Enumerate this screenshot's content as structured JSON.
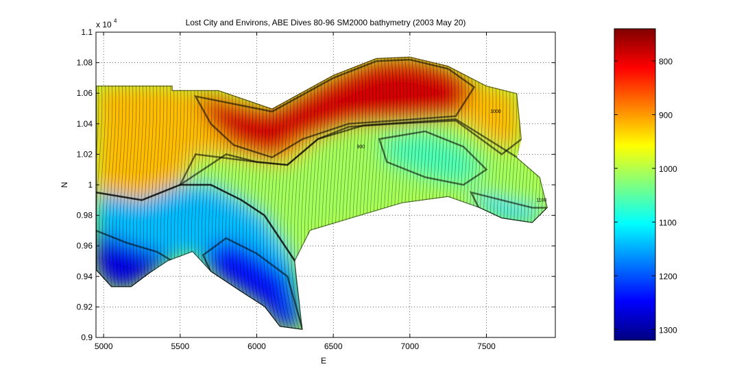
{
  "chart_data": {
    "type": "heatmap",
    "title": "Lost City and Environs, ABE Dives 80-96 SM2000 bathymetry (2003 May 20)",
    "xlabel": "E",
    "ylabel": "N",
    "xlim": [
      4950,
      7950
    ],
    "ylim": [
      9000,
      11000
    ],
    "x_ticks": [
      5000,
      5500,
      6000,
      6500,
      7000,
      7500
    ],
    "x_tick_labels": [
      "5000",
      "5500",
      "6000",
      "6500",
      "7000",
      "7500"
    ],
    "y_ticks": [
      9000,
      9200,
      9400,
      9600,
      9800,
      10000,
      10200,
      10400,
      10600,
      10800,
      11000
    ],
    "y_tick_labels": [
      "0.9",
      "0.92",
      "0.94",
      "0.96",
      "0.98",
      "1",
      "1.02",
      "1.04",
      "1.06",
      "1.08",
      "1.1"
    ],
    "y_exponent_label": "x 10",
    "y_exponent_power": "4",
    "grid": true,
    "colorbar": {
      "colormap": "jet",
      "range": [
        740,
        1320
      ],
      "ticks": [
        800,
        900,
        1000,
        1100,
        1200,
        1300
      ],
      "tick_labels": [
        "800",
        "900",
        "1000",
        "1100",
        "1200",
        "1300"
      ],
      "reversed": true
    },
    "contour_labels": [
      "900",
      "1000",
      "1100"
    ],
    "depth_field": {
      "footprint_polygon": [
        [
          4950,
          10650
        ],
        [
          5450,
          10650
        ],
        [
          5450,
          10620
        ],
        [
          5750,
          10620
        ],
        [
          6100,
          10500
        ],
        [
          6500,
          10720
        ],
        [
          6780,
          10830
        ],
        [
          7000,
          10840
        ],
        [
          7250,
          10780
        ],
        [
          7500,
          10650
        ],
        [
          7700,
          10600
        ],
        [
          7730,
          10300
        ],
        [
          7700,
          10180
        ],
        [
          7850,
          10050
        ],
        [
          7900,
          9850
        ],
        [
          7800,
          9750
        ],
        [
          7600,
          9780
        ],
        [
          7450,
          9850
        ],
        [
          7250,
          9920
        ],
        [
          6950,
          9880
        ],
        [
          6650,
          9790
        ],
        [
          6350,
          9700
        ],
        [
          6250,
          9500
        ],
        [
          6300,
          9050
        ],
        [
          6150,
          9070
        ],
        [
          6050,
          9200
        ],
        [
          5880,
          9310
        ],
        [
          5700,
          9430
        ],
        [
          5580,
          9560
        ],
        [
          5420,
          9500
        ],
        [
          5300,
          9420
        ],
        [
          5180,
          9330
        ],
        [
          5050,
          9330
        ],
        [
          4950,
          9440
        ]
      ],
      "regions": [
        {
          "polygon": [
            [
              4950,
              10650
            ],
            [
              5450,
              10650
            ],
            [
              5450,
              10620
            ],
            [
              5750,
              10620
            ],
            [
              6100,
              10500
            ],
            [
              6500,
              10720
            ],
            [
              6780,
              10830
            ],
            [
              7000,
              10840
            ],
            [
              7250,
              10780
            ],
            [
              7500,
              10650
            ],
            [
              7700,
              10600
            ],
            [
              7730,
              10300
            ],
            [
              7600,
              10200
            ],
            [
              7300,
              10420
            ],
            [
              6900,
              10400
            ],
            [
              6600,
              10380
            ],
            [
              6400,
              10300
            ],
            [
              6200,
              10130
            ],
            [
              6000,
              10150
            ],
            [
              5800,
              10200
            ],
            [
              5500,
              10000
            ],
            [
              5250,
              9900
            ],
            [
              4950,
              9950
            ]
          ],
          "depth": 920
        },
        {
          "polygon": [
            [
              5600,
              10580
            ],
            [
              6100,
              10480
            ],
            [
              6500,
              10700
            ],
            [
              6780,
              10810
            ],
            [
              7000,
              10820
            ],
            [
              7250,
              10760
            ],
            [
              7420,
              10640
            ],
            [
              7300,
              10450
            ],
            [
              6900,
              10420
            ],
            [
              6600,
              10400
            ],
            [
              6300,
              10300
            ],
            [
              6100,
              10180
            ],
            [
              5850,
              10260
            ],
            [
              5700,
              10400
            ]
          ],
          "depth": 790
        },
        {
          "polygon": [
            [
              5600,
              10200
            ],
            [
              6000,
              10150
            ],
            [
              6200,
              10130
            ],
            [
              6400,
              10300
            ],
            [
              6700,
              10390
            ],
            [
              7000,
              10410
            ],
            [
              7300,
              10430
            ],
            [
              7700,
              10180
            ],
            [
              7850,
              10050
            ],
            [
              7900,
              9850
            ],
            [
              7800,
              9750
            ],
            [
              7600,
              9780
            ],
            [
              7450,
              9850
            ],
            [
              7250,
              9920
            ],
            [
              6950,
              9880
            ],
            [
              6650,
              9790
            ],
            [
              6350,
              9700
            ],
            [
              6250,
              9500
            ],
            [
              6150,
              9650
            ],
            [
              6050,
              9800
            ],
            [
              5900,
              9900
            ],
            [
              5700,
              10000
            ],
            [
              5500,
              10000
            ]
          ],
          "depth": 1010
        },
        {
          "polygon": [
            [
              4950,
              9950
            ],
            [
              5250,
              9900
            ],
            [
              5500,
              10000
            ],
            [
              5700,
              10000
            ],
            [
              5900,
              9900
            ],
            [
              6050,
              9800
            ],
            [
              6150,
              9650
            ],
            [
              6250,
              9500
            ],
            [
              6300,
              9050
            ],
            [
              6150,
              9070
            ],
            [
              6050,
              9200
            ],
            [
              5880,
              9310
            ],
            [
              5700,
              9430
            ],
            [
              5580,
              9560
            ],
            [
              5420,
              9500
            ],
            [
              5300,
              9420
            ],
            [
              5180,
              9330
            ],
            [
              5050,
              9330
            ],
            [
              4950,
              9440
            ]
          ],
          "depth": 1140
        },
        {
          "polygon": [
            [
              4950,
              9700
            ],
            [
              5150,
              9620
            ],
            [
              5350,
              9560
            ],
            [
              5450,
              9500
            ],
            [
              5300,
              9420
            ],
            [
              5180,
              9330
            ],
            [
              5050,
              9330
            ],
            [
              4950,
              9440
            ]
          ],
          "depth": 1260
        },
        {
          "polygon": [
            [
              5800,
              9650
            ],
            [
              6000,
              9550
            ],
            [
              6200,
              9400
            ],
            [
              6300,
              9050
            ],
            [
              6150,
              9070
            ],
            [
              6050,
              9200
            ],
            [
              5880,
              9310
            ],
            [
              5700,
              9430
            ],
            [
              5650,
              9540
            ]
          ],
          "depth": 1240
        },
        {
          "polygon": [
            [
              6800,
              10300
            ],
            [
              7100,
              10350
            ],
            [
              7350,
              10250
            ],
            [
              7500,
              10100
            ],
            [
              7350,
              10000
            ],
            [
              7100,
              10050
            ],
            [
              6850,
              10150
            ]
          ],
          "depth": 1060
        },
        {
          "polygon": [
            [
              7400,
              9950
            ],
            [
              7600,
              9900
            ],
            [
              7800,
              9850
            ],
            [
              7900,
              9850
            ],
            [
              7800,
              9750
            ],
            [
              7600,
              9780
            ],
            [
              7450,
              9850
            ]
          ],
          "depth": 1120
        }
      ]
    }
  }
}
